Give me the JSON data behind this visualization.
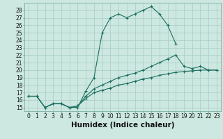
{
  "title": "",
  "xlabel": "Humidex (Indice chaleur)",
  "bg_color": "#cce8e0",
  "line_color": "#1a6e60",
  "xlim": [
    -0.5,
    23.5
  ],
  "ylim": [
    14.5,
    29.0
  ],
  "yticks": [
    15,
    16,
    17,
    18,
    19,
    20,
    21,
    22,
    23,
    24,
    25,
    26,
    27,
    28
  ],
  "xticks": [
    0,
    1,
    2,
    3,
    4,
    5,
    6,
    7,
    8,
    9,
    10,
    11,
    12,
    13,
    14,
    15,
    16,
    17,
    18,
    19,
    20,
    21,
    22,
    23
  ],
  "line1_x": [
    0,
    1,
    2,
    3,
    4,
    5,
    6,
    7,
    8,
    9,
    10,
    11,
    12,
    13,
    14,
    15,
    16,
    17,
    18
  ],
  "line1_y": [
    16.5,
    16.5,
    15.0,
    15.5,
    15.5,
    15.0,
    15.0,
    17.2,
    19.0,
    25.0,
    27.0,
    27.5,
    27.0,
    27.5,
    28.0,
    28.5,
    27.5,
    26.0,
    23.5
  ],
  "line2_x": [
    0,
    1,
    2,
    3,
    4,
    5,
    6,
    7,
    8,
    9,
    10,
    11,
    12,
    13,
    14,
    15,
    16,
    17,
    18,
    19,
    20,
    21,
    22,
    23
  ],
  "line2_y": [
    16.5,
    16.5,
    15.0,
    15.5,
    15.5,
    15.0,
    15.2,
    16.5,
    17.5,
    18.0,
    18.5,
    19.0,
    19.3,
    19.6,
    20.0,
    20.5,
    21.0,
    21.5,
    22.0,
    20.5,
    20.2,
    20.5,
    20.0,
    20.0
  ],
  "line3_x": [
    0,
    1,
    2,
    3,
    4,
    5,
    6,
    7,
    8,
    9,
    10,
    11,
    12,
    13,
    14,
    15,
    16,
    17,
    18,
    19,
    20,
    21,
    22,
    23
  ],
  "line3_y": [
    16.5,
    16.5,
    15.0,
    15.5,
    15.5,
    15.0,
    15.2,
    16.2,
    17.0,
    17.3,
    17.6,
    18.0,
    18.2,
    18.5,
    18.8,
    19.0,
    19.3,
    19.5,
    19.7,
    19.8,
    19.9,
    20.0,
    20.0,
    20.0
  ],
  "tick_fontsize": 5.5,
  "xlabel_fontsize": 7.5,
  "grid_color": "#a8ccc4",
  "spine_color": "#7aada0"
}
